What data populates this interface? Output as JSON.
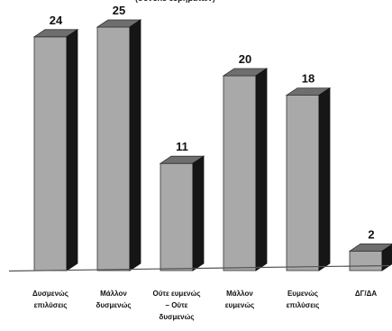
{
  "chart_data": {
    "type": "bar",
    "title": "",
    "subtitle": "(συνολο ευρηματων)",
    "categories": [
      [
        "Δυσμενώς",
        "επιλύσεις"
      ],
      [
        "Μάλλον",
        "δυσμενώς"
      ],
      [
        "Ούτε ευμενώς",
        "– Ούτε",
        "δυσμενώς"
      ],
      [
        "Μάλλον",
        "ευμενώς"
      ],
      [
        "Ευμενώς",
        "επιλύσεις"
      ],
      [
        "ΔΓ/ΔΑ"
      ]
    ],
    "values": [
      24,
      25,
      11,
      20,
      18,
      2
    ],
    "data_labels": [
      "24",
      "25",
      "11",
      "20",
      "18",
      "2"
    ],
    "xlabel": "",
    "ylabel": "",
    "ylim": [
      0,
      25
    ],
    "grid": false,
    "legend": "none",
    "colors": {
      "bar_front": "#a9a9a9",
      "bar_top": "#6e6e6e",
      "bar_side": "#161616",
      "axis": "#555555",
      "text": "#111111"
    }
  }
}
